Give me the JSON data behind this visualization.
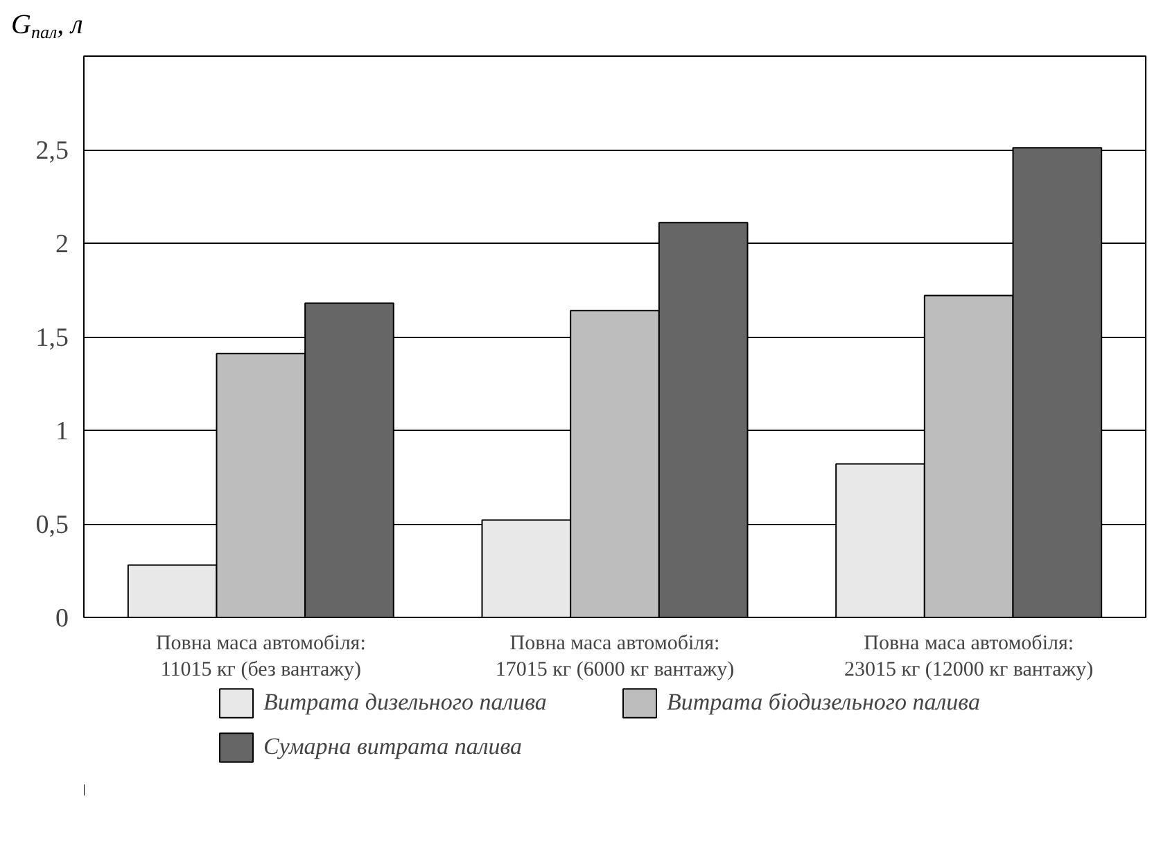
{
  "chart_data": {
    "type": "bar",
    "ylabel": "G$_{пал}$, л",
    "categories": [
      "Повна маса автомобіля:\n11015 кг (без вантажу)",
      "Повна маса автомобіля:\n17015 кг (6000 кг вантажу)",
      "Повна маса автомобіля:\n23015 кг (12000 кг вантажу)"
    ],
    "series": [
      {
        "name": "Витрата дизельного палива",
        "color": "#e8e8e8",
        "values": [
          0.28,
          0.52,
          0.82
        ]
      },
      {
        "name": "Витрата біодизельного палива",
        "color": "#bdbdbd",
        "values": [
          1.41,
          1.64,
          1.72
        ]
      },
      {
        "name": "Сумарна витрата палива",
        "color": "#666666",
        "values": [
          1.68,
          2.11,
          2.51
        ]
      }
    ],
    "ylim": [
      0,
      3
    ],
    "yticks": [
      0,
      {
        "value": 0.5,
        "label": "0,5"
      },
      1,
      {
        "value": 1.5,
        "label": "1,5"
      },
      2,
      {
        "value": 2.5,
        "label": "2,5"
      }
    ],
    "grid": "y",
    "legend": "bottom"
  }
}
